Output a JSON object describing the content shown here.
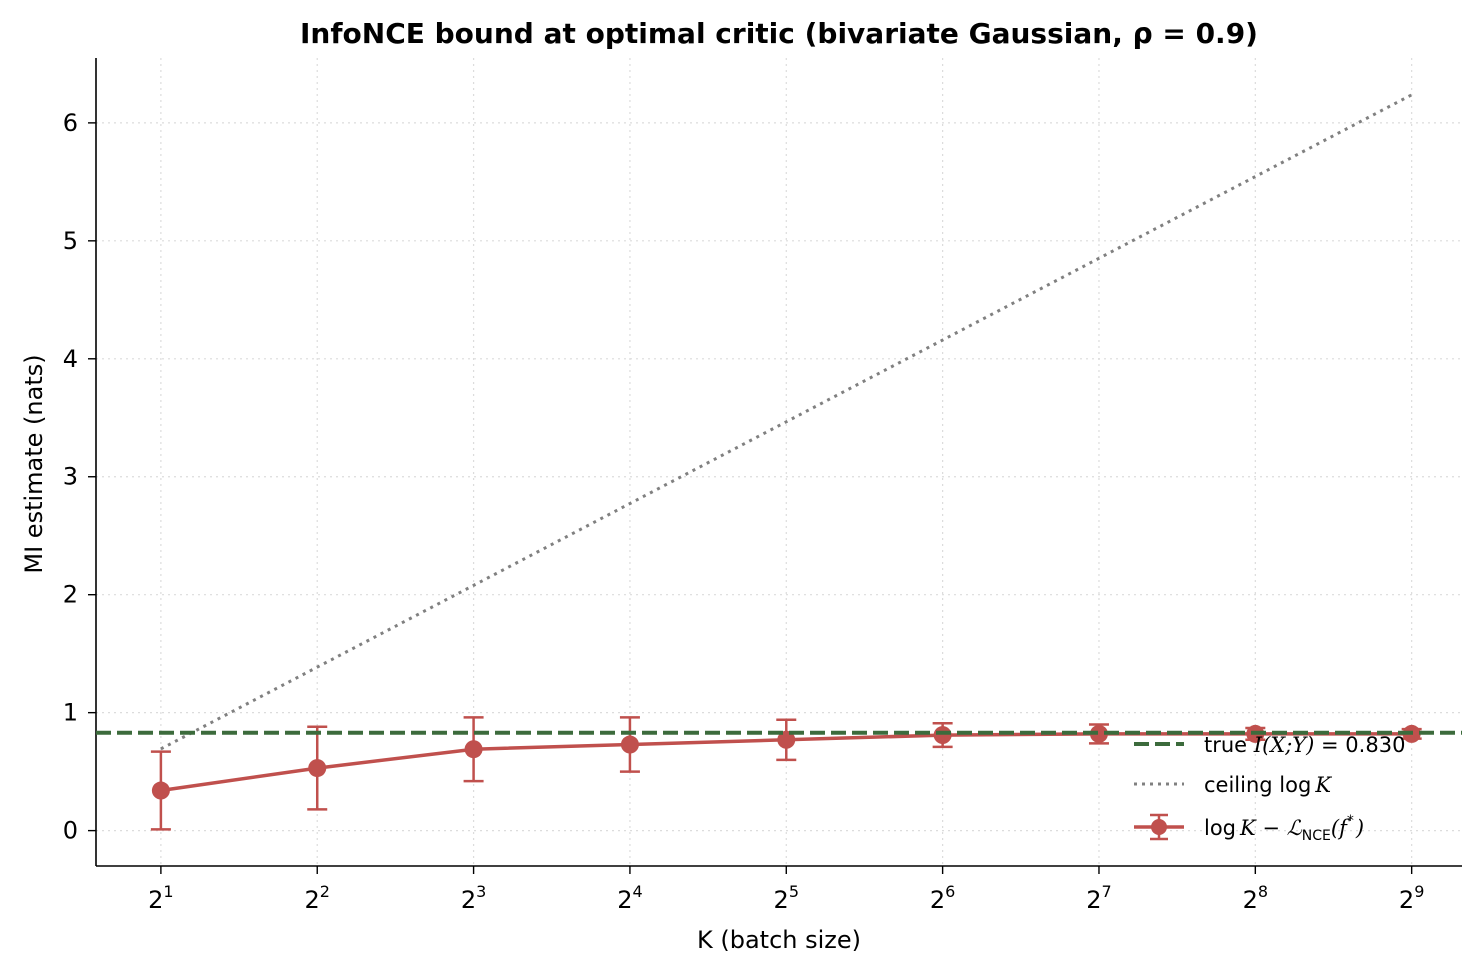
{
  "chart_data": {
    "type": "line",
    "title": "InfoNCE bound at optimal critic   (bivariate Gaussian, ρ = 0.9)",
    "xlabel": "K  (batch size)",
    "ylabel": "MI estimate (nats)",
    "x_scale": "log2",
    "x": [
      2,
      4,
      8,
      16,
      32,
      64,
      128,
      256,
      512
    ],
    "x_tick_base": "2",
    "x_tick_exponents": [
      "1",
      "2",
      "3",
      "4",
      "5",
      "6",
      "7",
      "8",
      "9"
    ],
    "xlim": [
      1.5,
      640
    ],
    "ylim": [
      -0.3,
      6.55
    ],
    "y_ticks": [
      0,
      1,
      2,
      3,
      4,
      5,
      6
    ],
    "grid": true,
    "legend_position": "lower-right",
    "series": [
      {
        "name": "log K − L_NCE(f*)",
        "kind": "errorbar",
        "color": "#c0504d",
        "values": [
          0.34,
          0.53,
          0.69,
          0.73,
          0.77,
          0.81,
          0.82,
          0.82,
          0.82
        ],
        "err": [
          0.33,
          0.35,
          0.27,
          0.23,
          0.17,
          0.1,
          0.08,
          0.05,
          0.04
        ]
      },
      {
        "name": "true I(X;Y) = 0.830",
        "kind": "hline",
        "color": "#3c6b3c",
        "value": 0.83
      },
      {
        "name": "ceiling log K",
        "kind": "line",
        "color": "#808080",
        "values": [
          0.693,
          1.386,
          2.079,
          2.773,
          3.466,
          4.159,
          4.852,
          5.545,
          6.238
        ]
      }
    ],
    "legend": {
      "true_prefix": "true ",
      "true_math": "I(X;Y)",
      "true_suffix": " = 0.830",
      "ceiling_prefix": "ceiling ",
      "ceiling_log": "log",
      "ceiling_K": "K",
      "nce_log": "log",
      "nce_K": "K",
      "nce_minus": " − ",
      "nce_L": "ℒ",
      "nce_sub": "NCE",
      "nce_arg": "(f",
      "nce_star": "*",
      "nce_close": ")"
    }
  }
}
